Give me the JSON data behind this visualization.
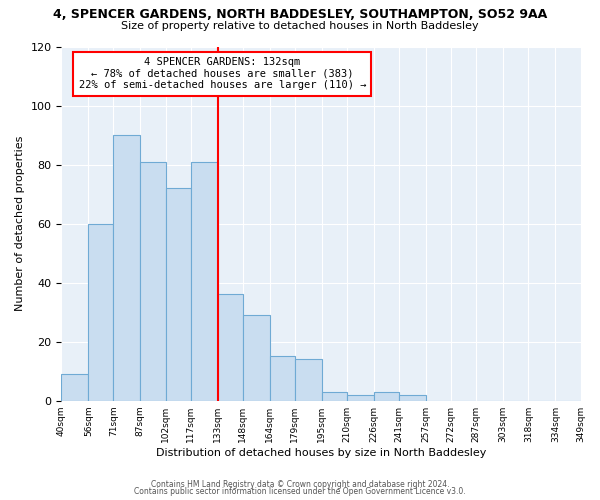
{
  "title": "4, SPENCER GARDENS, NORTH BADDESLEY, SOUTHAMPTON, SO52 9AA",
  "subtitle": "Size of property relative to detached houses in North Baddesley",
  "xlabel": "Distribution of detached houses by size in North Baddesley",
  "ylabel": "Number of detached properties",
  "bin_edges": [
    40,
    56,
    71,
    87,
    102,
    117,
    133,
    148,
    164,
    179,
    195,
    210,
    226,
    241,
    257,
    272,
    287,
    303,
    318,
    334,
    349
  ],
  "bar_heights": [
    9,
    60,
    90,
    81,
    72,
    81,
    36,
    29,
    15,
    14,
    3,
    2,
    3,
    2,
    0,
    0,
    0,
    0,
    0,
    0
  ],
  "bar_color": "#c9ddf0",
  "bar_edge_color": "#6faad4",
  "vline_x": 133,
  "vline_color": "red",
  "annotation_title": "4 SPENCER GARDENS: 132sqm",
  "annotation_line1": "← 78% of detached houses are smaller (383)",
  "annotation_line2": "22% of semi-detached houses are larger (110) →",
  "annotation_box_edge": "red",
  "annotation_box_bg": "white",
  "ylim": [
    0,
    120
  ],
  "yticks": [
    0,
    20,
    40,
    60,
    80,
    100,
    120
  ],
  "tick_labels": [
    "40sqm",
    "56sqm",
    "71sqm",
    "87sqm",
    "102sqm",
    "117sqm",
    "133sqm",
    "148sqm",
    "164sqm",
    "179sqm",
    "195sqm",
    "210sqm",
    "226sqm",
    "241sqm",
    "257sqm",
    "272sqm",
    "287sqm",
    "303sqm",
    "318sqm",
    "334sqm",
    "349sqm"
  ],
  "footer1": "Contains HM Land Registry data © Crown copyright and database right 2024.",
  "footer2": "Contains public sector information licensed under the Open Government Licence v3.0.",
  "bg_color": "#ffffff",
  "plot_bg_color": "#e8f0f8"
}
